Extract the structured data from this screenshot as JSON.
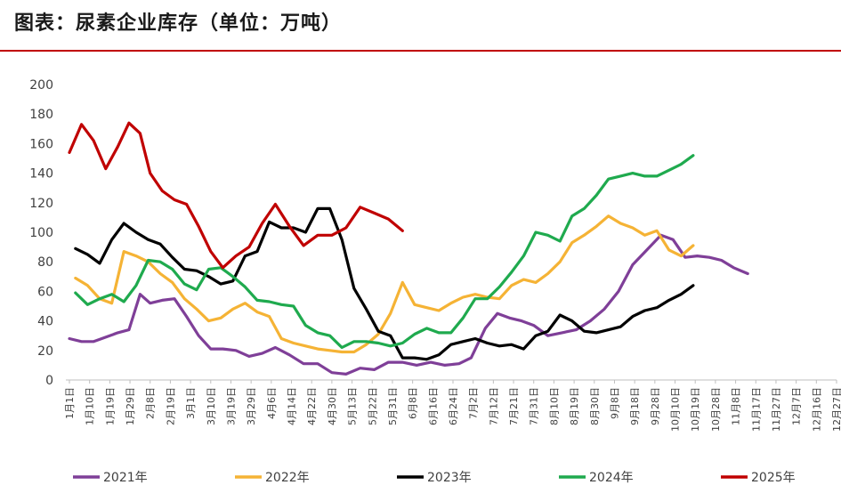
{
  "header": {
    "title": "图表：尿素企业库存（单位：万吨）"
  },
  "colors": {
    "2021年": "#7f3f98",
    "2022年": "#f5b335",
    "2023年": "#000000",
    "2024年": "#1faa4e",
    "2025年": "#c00000",
    "rule": "#c00000"
  },
  "chart_data": {
    "type": "line",
    "title": "图表：尿素企业库存（单位：万吨）",
    "xlabel": "",
    "ylabel": "",
    "ylim": [
      0,
      200
    ],
    "yticks": [
      0,
      20,
      40,
      60,
      80,
      100,
      120,
      140,
      160,
      180,
      200
    ],
    "grid": false,
    "legend": "bottom",
    "categories": [
      "1月1日",
      "1月10日",
      "1月19日",
      "1月29日",
      "2月8日",
      "2月19日",
      "3月1日",
      "3月10日",
      "3月19日",
      "3月29日",
      "4月6日",
      "4月14日",
      "4月22日",
      "4月30日",
      "5月13日",
      "5月22日",
      "5月31日",
      "6月8日",
      "6月16日",
      "6月24日",
      "7月2日",
      "7月12日",
      "7月21日",
      "7月31日",
      "8月10日",
      "8月19日",
      "8月30日",
      "9月8日",
      "9月18日",
      "9月28日",
      "10月10日",
      "10月19日",
      "10月28日",
      "11月8日",
      "11月17日",
      "11月27日",
      "12月7日",
      "12月16日",
      "12月27日"
    ],
    "series": [
      {
        "name": "2021年",
        "points": [
          {
            "x": 0.0,
            "y": 28
          },
          {
            "x": 0.6,
            "y": 26
          },
          {
            "x": 1.2,
            "y": 26
          },
          {
            "x": 1.8,
            "y": 29
          },
          {
            "x": 2.4,
            "y": 32
          },
          {
            "x": 2.95,
            "y": 34
          },
          {
            "x": 3.5,
            "y": 58
          },
          {
            "x": 4.0,
            "y": 52
          },
          {
            "x": 4.6,
            "y": 54
          },
          {
            "x": 5.2,
            "y": 55
          },
          {
            "x": 5.8,
            "y": 43
          },
          {
            "x": 6.4,
            "y": 30
          },
          {
            "x": 7.0,
            "y": 21
          },
          {
            "x": 7.6,
            "y": 21
          },
          {
            "x": 8.25,
            "y": 20
          },
          {
            "x": 8.9,
            "y": 16
          },
          {
            "x": 9.55,
            "y": 18
          },
          {
            "x": 10.2,
            "y": 22
          },
          {
            "x": 10.9,
            "y": 17
          },
          {
            "x": 11.6,
            "y": 11
          },
          {
            "x": 12.3,
            "y": 11
          },
          {
            "x": 13.0,
            "y": 5
          },
          {
            "x": 13.7,
            "y": 4
          },
          {
            "x": 14.4,
            "y": 8
          },
          {
            "x": 15.1,
            "y": 7
          },
          {
            "x": 15.8,
            "y": 12
          },
          {
            "x": 16.5,
            "y": 12
          },
          {
            "x": 17.2,
            "y": 10
          },
          {
            "x": 17.9,
            "y": 12
          },
          {
            "x": 18.6,
            "y": 10
          },
          {
            "x": 19.3,
            "y": 11
          },
          {
            "x": 19.9,
            "y": 15
          },
          {
            "x": 20.6,
            "y": 35
          },
          {
            "x": 21.2,
            "y": 45
          },
          {
            "x": 21.8,
            "y": 42
          },
          {
            "x": 22.4,
            "y": 40
          },
          {
            "x": 23.0,
            "y": 37
          },
          {
            "x": 23.7,
            "y": 30
          },
          {
            "x": 24.4,
            "y": 32
          },
          {
            "x": 25.1,
            "y": 34
          },
          {
            "x": 25.8,
            "y": 40
          },
          {
            "x": 26.5,
            "y": 48
          },
          {
            "x": 27.2,
            "y": 60
          },
          {
            "x": 27.9,
            "y": 78
          },
          {
            "x": 28.6,
            "y": 88
          },
          {
            "x": 29.3,
            "y": 98
          },
          {
            "x": 29.9,
            "y": 95
          },
          {
            "x": 30.5,
            "y": 83
          },
          {
            "x": 31.1,
            "y": 84
          },
          {
            "x": 31.7,
            "y": 83
          },
          {
            "x": 32.3,
            "y": 81
          },
          {
            "x": 32.9,
            "y": 76
          },
          {
            "x": 33.6,
            "y": 72
          }
        ]
      },
      {
        "name": "2022年",
        "points": [
          {
            "x": 0.3,
            "y": 69
          },
          {
            "x": 0.9,
            "y": 64
          },
          {
            "x": 1.5,
            "y": 55
          },
          {
            "x": 2.1,
            "y": 52
          },
          {
            "x": 2.7,
            "y": 87
          },
          {
            "x": 3.3,
            "y": 84
          },
          {
            "x": 3.9,
            "y": 80
          },
          {
            "x": 4.5,
            "y": 72
          },
          {
            "x": 5.1,
            "y": 66
          },
          {
            "x": 5.7,
            "y": 55
          },
          {
            "x": 6.3,
            "y": 48
          },
          {
            "x": 6.9,
            "y": 40
          },
          {
            "x": 7.5,
            "y": 42
          },
          {
            "x": 8.1,
            "y": 48
          },
          {
            "x": 8.7,
            "y": 52
          },
          {
            "x": 9.3,
            "y": 46
          },
          {
            "x": 9.9,
            "y": 43
          },
          {
            "x": 10.5,
            "y": 28
          },
          {
            "x": 11.1,
            "y": 25
          },
          {
            "x": 11.7,
            "y": 23
          },
          {
            "x": 12.3,
            "y": 21
          },
          {
            "x": 12.9,
            "y": 20
          },
          {
            "x": 13.5,
            "y": 19
          },
          {
            "x": 14.1,
            "y": 19
          },
          {
            "x": 14.7,
            "y": 24
          },
          {
            "x": 15.3,
            "y": 31
          },
          {
            "x": 15.9,
            "y": 45
          },
          {
            "x": 16.5,
            "y": 66
          },
          {
            "x": 17.1,
            "y": 51
          },
          {
            "x": 17.7,
            "y": 49
          },
          {
            "x": 18.3,
            "y": 47
          },
          {
            "x": 18.9,
            "y": 52
          },
          {
            "x": 19.5,
            "y": 56
          },
          {
            "x": 20.1,
            "y": 58
          },
          {
            "x": 20.7,
            "y": 56
          },
          {
            "x": 21.3,
            "y": 55
          },
          {
            "x": 21.9,
            "y": 64
          },
          {
            "x": 22.5,
            "y": 68
          },
          {
            "x": 23.1,
            "y": 66
          },
          {
            "x": 23.7,
            "y": 72
          },
          {
            "x": 24.3,
            "y": 80
          },
          {
            "x": 24.9,
            "y": 93
          },
          {
            "x": 25.5,
            "y": 98
          },
          {
            "x": 26.1,
            "y": 104
          },
          {
            "x": 26.7,
            "y": 111
          },
          {
            "x": 27.3,
            "y": 106
          },
          {
            "x": 27.9,
            "y": 103
          },
          {
            "x": 28.5,
            "y": 98
          },
          {
            "x": 29.1,
            "y": 101
          },
          {
            "x": 29.7,
            "y": 88
          },
          {
            "x": 30.3,
            "y": 84
          },
          {
            "x": 30.9,
            "y": 91
          }
        ]
      },
      {
        "name": "2023年",
        "points": [
          {
            "x": 0.3,
            "y": 89
          },
          {
            "x": 0.9,
            "y": 85
          },
          {
            "x": 1.5,
            "y": 79
          },
          {
            "x": 2.1,
            "y": 95
          },
          {
            "x": 2.7,
            "y": 106
          },
          {
            "x": 3.3,
            "y": 100
          },
          {
            "x": 3.9,
            "y": 95
          },
          {
            "x": 4.5,
            "y": 92
          },
          {
            "x": 5.1,
            "y": 83
          },
          {
            "x": 5.7,
            "y": 75
          },
          {
            "x": 6.3,
            "y": 74
          },
          {
            "x": 6.9,
            "y": 70
          },
          {
            "x": 7.5,
            "y": 65
          },
          {
            "x": 8.1,
            "y": 67
          },
          {
            "x": 8.7,
            "y": 84
          },
          {
            "x": 9.3,
            "y": 87
          },
          {
            "x": 9.9,
            "y": 107
          },
          {
            "x": 10.5,
            "y": 103
          },
          {
            "x": 11.1,
            "y": 103
          },
          {
            "x": 11.7,
            "y": 100
          },
          {
            "x": 12.3,
            "y": 116
          },
          {
            "x": 12.9,
            "y": 116
          },
          {
            "x": 13.5,
            "y": 95
          },
          {
            "x": 14.1,
            "y": 62
          },
          {
            "x": 14.7,
            "y": 48
          },
          {
            "x": 15.3,
            "y": 33
          },
          {
            "x": 15.9,
            "y": 30
          },
          {
            "x": 16.5,
            "y": 15
          },
          {
            "x": 17.1,
            "y": 15
          },
          {
            "x": 17.7,
            "y": 14
          },
          {
            "x": 18.3,
            "y": 17
          },
          {
            "x": 18.9,
            "y": 24
          },
          {
            "x": 19.5,
            "y": 26
          },
          {
            "x": 20.1,
            "y": 28
          },
          {
            "x": 20.7,
            "y": 25
          },
          {
            "x": 21.3,
            "y": 23
          },
          {
            "x": 21.9,
            "y": 24
          },
          {
            "x": 22.5,
            "y": 21
          },
          {
            "x": 23.1,
            "y": 30
          },
          {
            "x": 23.7,
            "y": 33
          },
          {
            "x": 24.3,
            "y": 44
          },
          {
            "x": 24.9,
            "y": 40
          },
          {
            "x": 25.5,
            "y": 33
          },
          {
            "x": 26.1,
            "y": 32
          },
          {
            "x": 26.7,
            "y": 34
          },
          {
            "x": 27.3,
            "y": 36
          },
          {
            "x": 27.9,
            "y": 43
          },
          {
            "x": 28.5,
            "y": 47
          },
          {
            "x": 29.1,
            "y": 49
          },
          {
            "x": 29.7,
            "y": 54
          },
          {
            "x": 30.3,
            "y": 58
          },
          {
            "x": 30.9,
            "y": 64
          }
        ]
      },
      {
        "name": "2024年",
        "points": [
          {
            "x": 0.3,
            "y": 59
          },
          {
            "x": 0.9,
            "y": 51
          },
          {
            "x": 1.5,
            "y": 55
          },
          {
            "x": 2.1,
            "y": 58
          },
          {
            "x": 2.7,
            "y": 53
          },
          {
            "x": 3.3,
            "y": 64
          },
          {
            "x": 3.9,
            "y": 81
          },
          {
            "x": 4.5,
            "y": 80
          },
          {
            "x": 5.1,
            "y": 75
          },
          {
            "x": 5.7,
            "y": 65
          },
          {
            "x": 6.3,
            "y": 61
          },
          {
            "x": 6.9,
            "y": 75
          },
          {
            "x": 7.5,
            "y": 76
          },
          {
            "x": 8.1,
            "y": 70
          },
          {
            "x": 8.7,
            "y": 63
          },
          {
            "x": 9.3,
            "y": 54
          },
          {
            "x": 9.9,
            "y": 53
          },
          {
            "x": 10.5,
            "y": 51
          },
          {
            "x": 11.1,
            "y": 50
          },
          {
            "x": 11.7,
            "y": 37
          },
          {
            "x": 12.3,
            "y": 32
          },
          {
            "x": 12.9,
            "y": 30
          },
          {
            "x": 13.5,
            "y": 22
          },
          {
            "x": 14.1,
            "y": 26
          },
          {
            "x": 14.7,
            "y": 26
          },
          {
            "x": 15.3,
            "y": 25
          },
          {
            "x": 15.9,
            "y": 23
          },
          {
            "x": 16.5,
            "y": 25
          },
          {
            "x": 17.1,
            "y": 31
          },
          {
            "x": 17.7,
            "y": 35
          },
          {
            "x": 18.3,
            "y": 32
          },
          {
            "x": 18.9,
            "y": 32
          },
          {
            "x": 19.5,
            "y": 42
          },
          {
            "x": 20.1,
            "y": 55
          },
          {
            "x": 20.7,
            "y": 55
          },
          {
            "x": 21.3,
            "y": 63
          },
          {
            "x": 21.9,
            "y": 73
          },
          {
            "x": 22.5,
            "y": 84
          },
          {
            "x": 23.1,
            "y": 100
          },
          {
            "x": 23.7,
            "y": 98
          },
          {
            "x": 24.3,
            "y": 94
          },
          {
            "x": 24.9,
            "y": 111
          },
          {
            "x": 25.5,
            "y": 116
          },
          {
            "x": 26.1,
            "y": 125
          },
          {
            "x": 26.7,
            "y": 136
          },
          {
            "x": 27.3,
            "y": 138
          },
          {
            "x": 27.9,
            "y": 140
          },
          {
            "x": 28.5,
            "y": 138
          },
          {
            "x": 29.1,
            "y": 138
          },
          {
            "x": 29.7,
            "y": 142
          },
          {
            "x": 30.3,
            "y": 146
          },
          {
            "x": 30.9,
            "y": 152
          }
        ]
      },
      {
        "name": "2025年",
        "points": [
          {
            "x": 0.0,
            "y": 154
          },
          {
            "x": 0.6,
            "y": 173
          },
          {
            "x": 1.2,
            "y": 162
          },
          {
            "x": 1.8,
            "y": 143
          },
          {
            "x": 2.4,
            "y": 158
          },
          {
            "x": 2.95,
            "y": 174
          },
          {
            "x": 3.5,
            "y": 167
          },
          {
            "x": 4.0,
            "y": 140
          },
          {
            "x": 4.6,
            "y": 128
          },
          {
            "x": 5.2,
            "y": 122
          },
          {
            "x": 5.8,
            "y": 119
          },
          {
            "x": 6.4,
            "y": 104
          },
          {
            "x": 7.0,
            "y": 87
          },
          {
            "x": 7.6,
            "y": 76
          },
          {
            "x": 8.25,
            "y": 84
          },
          {
            "x": 8.9,
            "y": 90
          },
          {
            "x": 9.55,
            "y": 106
          },
          {
            "x": 10.2,
            "y": 119
          },
          {
            "x": 10.9,
            "y": 104
          },
          {
            "x": 11.6,
            "y": 91
          },
          {
            "x": 12.3,
            "y": 98
          },
          {
            "x": 13.0,
            "y": 98
          },
          {
            "x": 13.7,
            "y": 103
          },
          {
            "x": 14.4,
            "y": 117
          },
          {
            "x": 15.1,
            "y": 113
          },
          {
            "x": 15.8,
            "y": 109
          },
          {
            "x": 16.5,
            "y": 101
          }
        ]
      }
    ]
  }
}
